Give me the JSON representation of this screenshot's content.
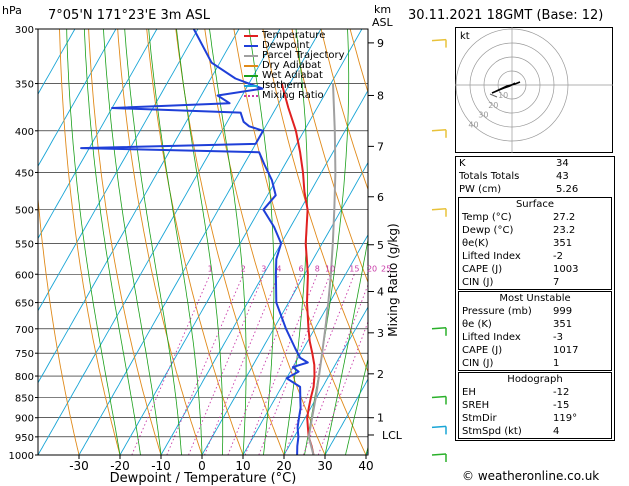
{
  "header": {
    "hpa_label": "hPa",
    "location": "7°05'N  171°23'E  3m  ASL",
    "km_label": "km",
    "asl_label": "ASL",
    "datetime": "30.11.2021  18GMT  (Base: 12)"
  },
  "legend": [
    {
      "label": "Temperature",
      "color": "#e02020"
    },
    {
      "label": "Dewpoint",
      "color": "#1f3fd8"
    },
    {
      "label": "Parcel Trajectory",
      "color": "#a0a0a0"
    },
    {
      "label": "Dry Adiabat",
      "color": "#e08a1a"
    },
    {
      "label": "Wet Adiabat",
      "color": "#1aa01a"
    },
    {
      "label": "Isotherm",
      "color": "#19a5d6"
    },
    {
      "label": "Mixing Ratio",
      "color": "#c83aa8"
    }
  ],
  "chart_data": {
    "type": "line",
    "xlabel": "Dewpoint / Temperature (°C)",
    "ylabel_right": "Mixing Ratio (g/kg)",
    "x_ticks": [
      -30,
      -20,
      -10,
      0,
      10,
      20,
      30,
      40
    ],
    "pressure_ticks": [
      300,
      350,
      400,
      450,
      500,
      550,
      600,
      650,
      700,
      750,
      800,
      850,
      900,
      950,
      1000
    ],
    "km_ticks": [
      {
        "label": "9",
        "p": 312
      },
      {
        "label": "8",
        "p": 362
      },
      {
        "label": "7",
        "p": 418
      },
      {
        "label": "6",
        "p": 482
      },
      {
        "label": "5",
        "p": 552
      },
      {
        "label": "4",
        "p": 630
      },
      {
        "label": "3",
        "p": 708
      },
      {
        "label": "2",
        "p": 795
      },
      {
        "label": "1",
        "p": 900
      },
      {
        "label": "LCL",
        "p": 945
      }
    ],
    "mixing_ratio_labels": [
      "1",
      "2",
      "3",
      "4",
      "6",
      "8",
      "10",
      "15",
      "20",
      "25"
    ],
    "mixing_ratio_values": [
      1,
      2,
      3,
      4,
      6,
      8,
      10,
      15,
      20,
      25
    ],
    "series": [
      {
        "name": "Temperature",
        "color": "#e02020",
        "points": [
          [
            1000,
            27.2
          ],
          [
            975,
            25.5
          ],
          [
            950,
            23.5
          ],
          [
            925,
            22.0
          ],
          [
            900,
            20.5
          ],
          [
            875,
            19.5
          ],
          [
            850,
            18.6
          ],
          [
            825,
            17.8
          ],
          [
            800,
            16.5
          ],
          [
            775,
            14.9
          ],
          [
            750,
            12.8
          ],
          [
            725,
            10.5
          ],
          [
            700,
            8.5
          ],
          [
            650,
            4.5
          ],
          [
            600,
            0.8
          ],
          [
            550,
            -4.0
          ],
          [
            500,
            -8.2
          ],
          [
            475,
            -11.5
          ],
          [
            450,
            -14.5
          ],
          [
            425,
            -18.0
          ],
          [
            400,
            -22.0
          ],
          [
            375,
            -27.0
          ],
          [
            350,
            -32.0
          ]
        ]
      },
      {
        "name": "Dewpoint",
        "color": "#1f3fd8",
        "points": [
          [
            1000,
            23.2
          ],
          [
            975,
            22.0
          ],
          [
            950,
            21.0
          ],
          [
            925,
            19.5
          ],
          [
            900,
            18.5
          ],
          [
            875,
            17.5
          ],
          [
            850,
            16.0
          ],
          [
            825,
            14.5
          ],
          [
            805,
            10.0
          ],
          [
            790,
            12.0
          ],
          [
            780,
            10.0
          ],
          [
            770,
            13.0
          ],
          [
            760,
            10.5
          ],
          [
            740,
            8.0
          ],
          [
            700,
            3.0
          ],
          [
            650,
            -3.0
          ],
          [
            600,
            -7.0
          ],
          [
            575,
            -9.0
          ],
          [
            550,
            -10.0
          ],
          [
            525,
            -14.0
          ],
          [
            500,
            -19.0
          ],
          [
            480,
            -18.0
          ],
          [
            460,
            -21.0
          ],
          [
            440,
            -25.0
          ],
          [
            425,
            -28.0
          ],
          [
            420,
            -72.0
          ],
          [
            415,
            -30.0
          ],
          [
            400,
            -30.0
          ],
          [
            395,
            -34.0
          ],
          [
            390,
            -36.0
          ],
          [
            380,
            -38.0
          ],
          [
            375,
            -70.0
          ],
          [
            370,
            -42.0
          ],
          [
            362,
            -46.0
          ],
          [
            355,
            -36.0
          ],
          [
            345,
            -44.0
          ],
          [
            330,
            -52.0
          ],
          [
            300,
            -61.0
          ]
        ]
      },
      {
        "name": "Parcel Trajectory",
        "color": "#a0a0a0",
        "points": [
          [
            1000,
            27.2
          ],
          [
            950,
            23.5
          ],
          [
            900,
            21.7
          ],
          [
            850,
            19.8
          ],
          [
            800,
            17.6
          ],
          [
            750,
            15.2
          ],
          [
            700,
            12.6
          ],
          [
            650,
            9.7
          ],
          [
            600,
            6.4
          ],
          [
            550,
            2.6
          ],
          [
            500,
            -1.7
          ],
          [
            450,
            -6.6
          ],
          [
            400,
            -12.5
          ],
          [
            350,
            -19.5
          ]
        ]
      }
    ]
  },
  "hodograph": {
    "kt_label": "kt",
    "ring_labels": [
      "10",
      "20",
      "30",
      "40"
    ]
  },
  "indices": [
    {
      "label": "K",
      "value": "34"
    },
    {
      "label": "Totals Totals",
      "value": "43"
    },
    {
      "label": "PW (cm)",
      "value": "5.26"
    }
  ],
  "surface": {
    "title": "Surface",
    "rows": [
      {
        "label": "Temp (°C)",
        "value": "27.2"
      },
      {
        "label": "Dewp (°C)",
        "value": "23.2"
      },
      {
        "label": "θe(K)",
        "value": "351"
      },
      {
        "label": "Lifted Index",
        "value": "-2"
      },
      {
        "label": "CAPE (J)",
        "value": "1003"
      },
      {
        "label": "CIN (J)",
        "value": "7"
      }
    ]
  },
  "most_unstable": {
    "title": "Most Unstable",
    "rows": [
      {
        "label": "Pressure (mb)",
        "value": "999"
      },
      {
        "label": "θe (K)",
        "value": "351"
      },
      {
        "label": "Lifted Index",
        "value": "-3"
      },
      {
        "label": "CAPE (J)",
        "value": "1017"
      },
      {
        "label": "CIN (J)",
        "value": "1"
      }
    ]
  },
  "hodograph_box": {
    "title": "Hodograph",
    "rows": [
      {
        "label": "EH",
        "value": "-12"
      },
      {
        "label": "SREH",
        "value": "-15"
      },
      {
        "label": "StmDir",
        "value": "119°"
      },
      {
        "label": "StmSpd (kt)",
        "value": "4"
      }
    ]
  },
  "copyright": "© weatheronline.co.uk"
}
